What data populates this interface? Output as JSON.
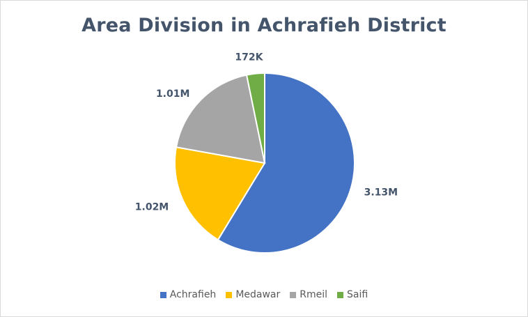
{
  "chart_data": {
    "type": "pie",
    "title": "Area Division in Achrafieh District",
    "categories": [
      "Achrafieh",
      "Medawar",
      "Rmeil",
      "Saifi"
    ],
    "values": [
      3130000,
      1020000,
      1010000,
      172000
    ],
    "data_labels": [
      "3.13M",
      "1.02M",
      "1.01M",
      "172K"
    ],
    "colors": [
      "#4472c4",
      "#ffc000",
      "#a5a5a5",
      "#70ad47"
    ],
    "legend_position": "bottom",
    "start_angle": "12 o'clock, clockwise"
  }
}
